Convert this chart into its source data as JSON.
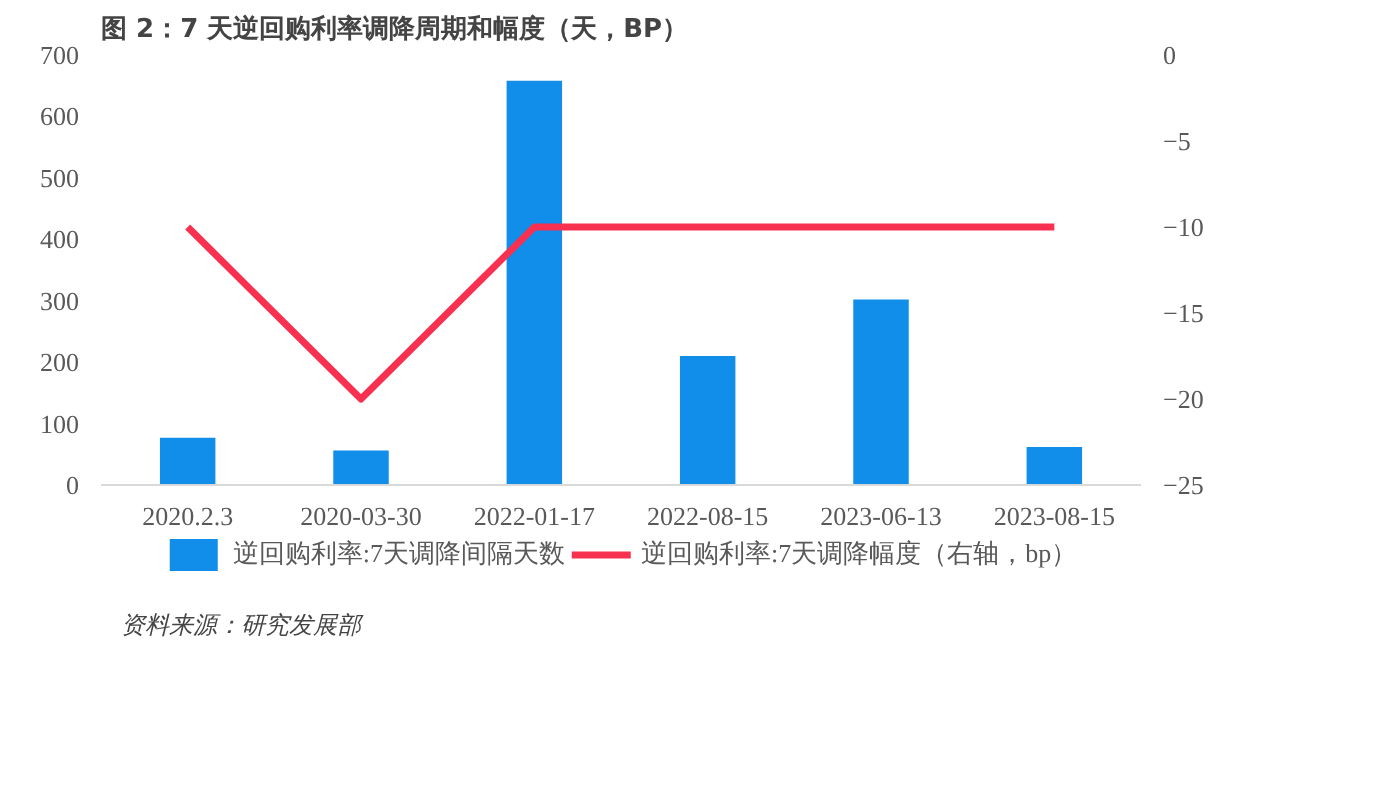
{
  "chart_data": {
    "type": "bar",
    "title": "图 2：7 天逆回购利率调降周期和幅度（天，BP）",
    "categories": [
      "2020.2.3",
      "2020-03-30",
      "2022-01-17",
      "2022-08-15",
      "2023-06-13",
      "2023-08-15"
    ],
    "series": [
      {
        "name": "逆回购利率:7天调降间隔天数",
        "color": "#118dea",
        "values": [
          77,
          56,
          658,
          210,
          302,
          62
        ]
      },
      {
        "name": "逆回购利率:7天调降幅度（右轴，bp）",
        "color": "#f7314f",
        "type": "line",
        "axis": "y2",
        "values": [
          -10,
          -20,
          -10,
          -10,
          -10,
          -10
        ]
      }
    ],
    "ylim": [
      0,
      700
    ],
    "yticks": [
      0,
      100,
      200,
      300,
      400,
      500,
      600,
      700
    ],
    "y2lim": [
      -25,
      0
    ],
    "y2ticks": [
      -25,
      -20,
      -15,
      -10,
      -5,
      0
    ],
    "grid": false,
    "legend": "bottom",
    "marker": "none",
    "line_style": "solid",
    "annotations": [
      "资料来源：研究发展部"
    ]
  }
}
